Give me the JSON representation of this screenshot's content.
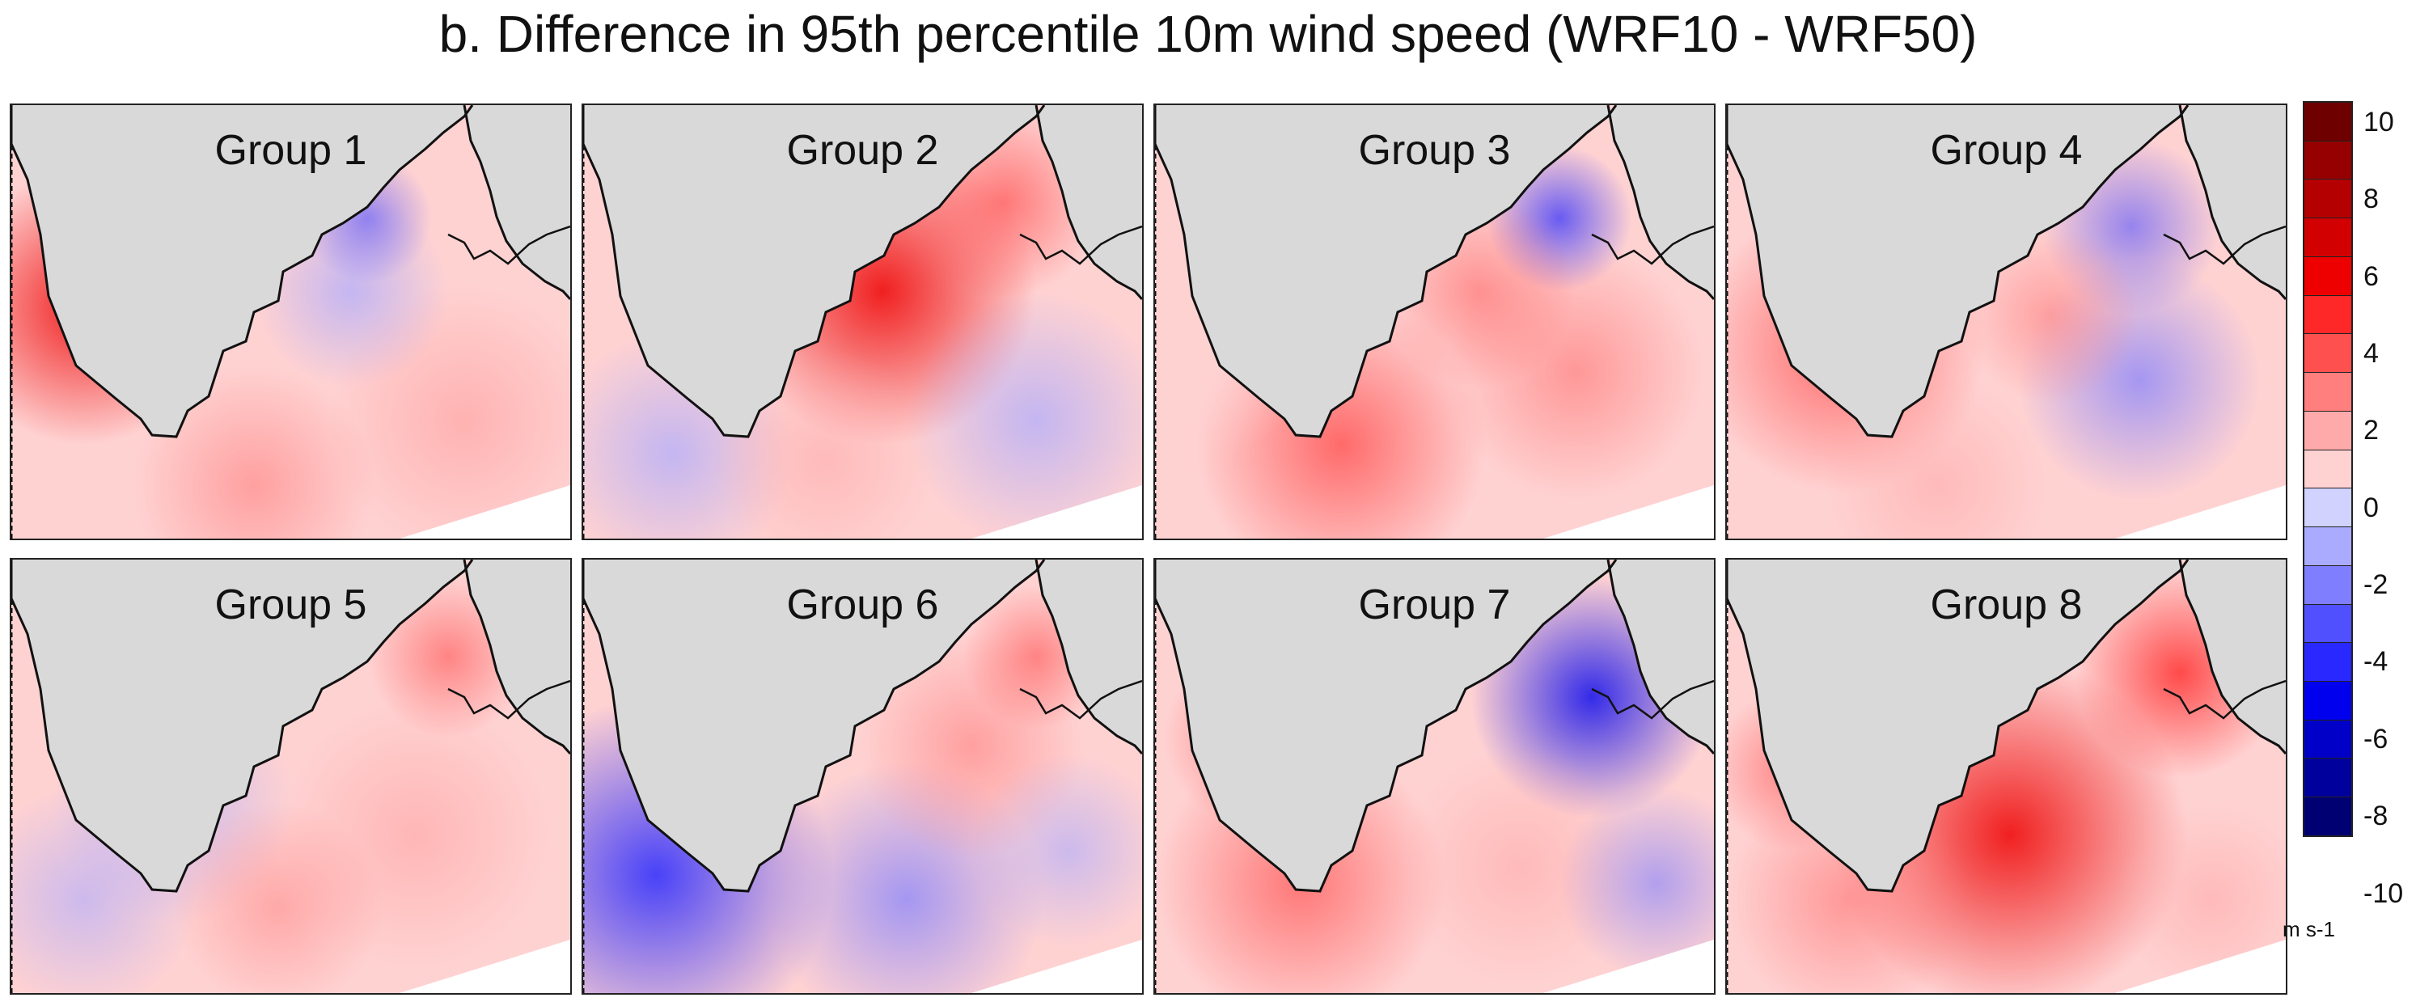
{
  "figure": {
    "title": "b. Difference in 95th percentile 10m wind speed (WRF10 - WRF50)"
  },
  "panels": [
    {
      "label": "Group 1",
      "pattern": "red-west-coast"
    },
    {
      "label": "Group 2",
      "pattern": "red-central-band"
    },
    {
      "label": "Group 3",
      "pattern": "red-south-blue-north"
    },
    {
      "label": "Group 4",
      "pattern": "red-west-blue-east"
    },
    {
      "label": "Group 5",
      "pattern": "mixed-weak"
    },
    {
      "label": "Group 6",
      "pattern": "blue-southwest"
    },
    {
      "label": "Group 7",
      "pattern": "blue-northeast"
    },
    {
      "label": "Group 8",
      "pattern": "red-central-strong"
    }
  ],
  "colorbar": {
    "units": "m s-1",
    "colors": [
      "#6e0000",
      "#960000",
      "#b40000",
      "#d20000",
      "#ee0000",
      "#ff2828",
      "#ff5050",
      "#ff7e7e",
      "#ffaaaa",
      "#ffd2d2",
      "#d2d2ff",
      "#aaaaff",
      "#7e7eff",
      "#5050ff",
      "#2828ff",
      "#0000ee",
      "#0000c8",
      "#00009c",
      "#000072"
    ],
    "tick_labels": [
      "10",
      "8",
      "6",
      "4",
      "2",
      "0",
      "-2",
      "-4",
      "-6",
      "-8",
      "-10"
    ]
  },
  "colors": {
    "land": "#d9d9d9",
    "coastline": "#111111",
    "background": "#ffffff"
  }
}
